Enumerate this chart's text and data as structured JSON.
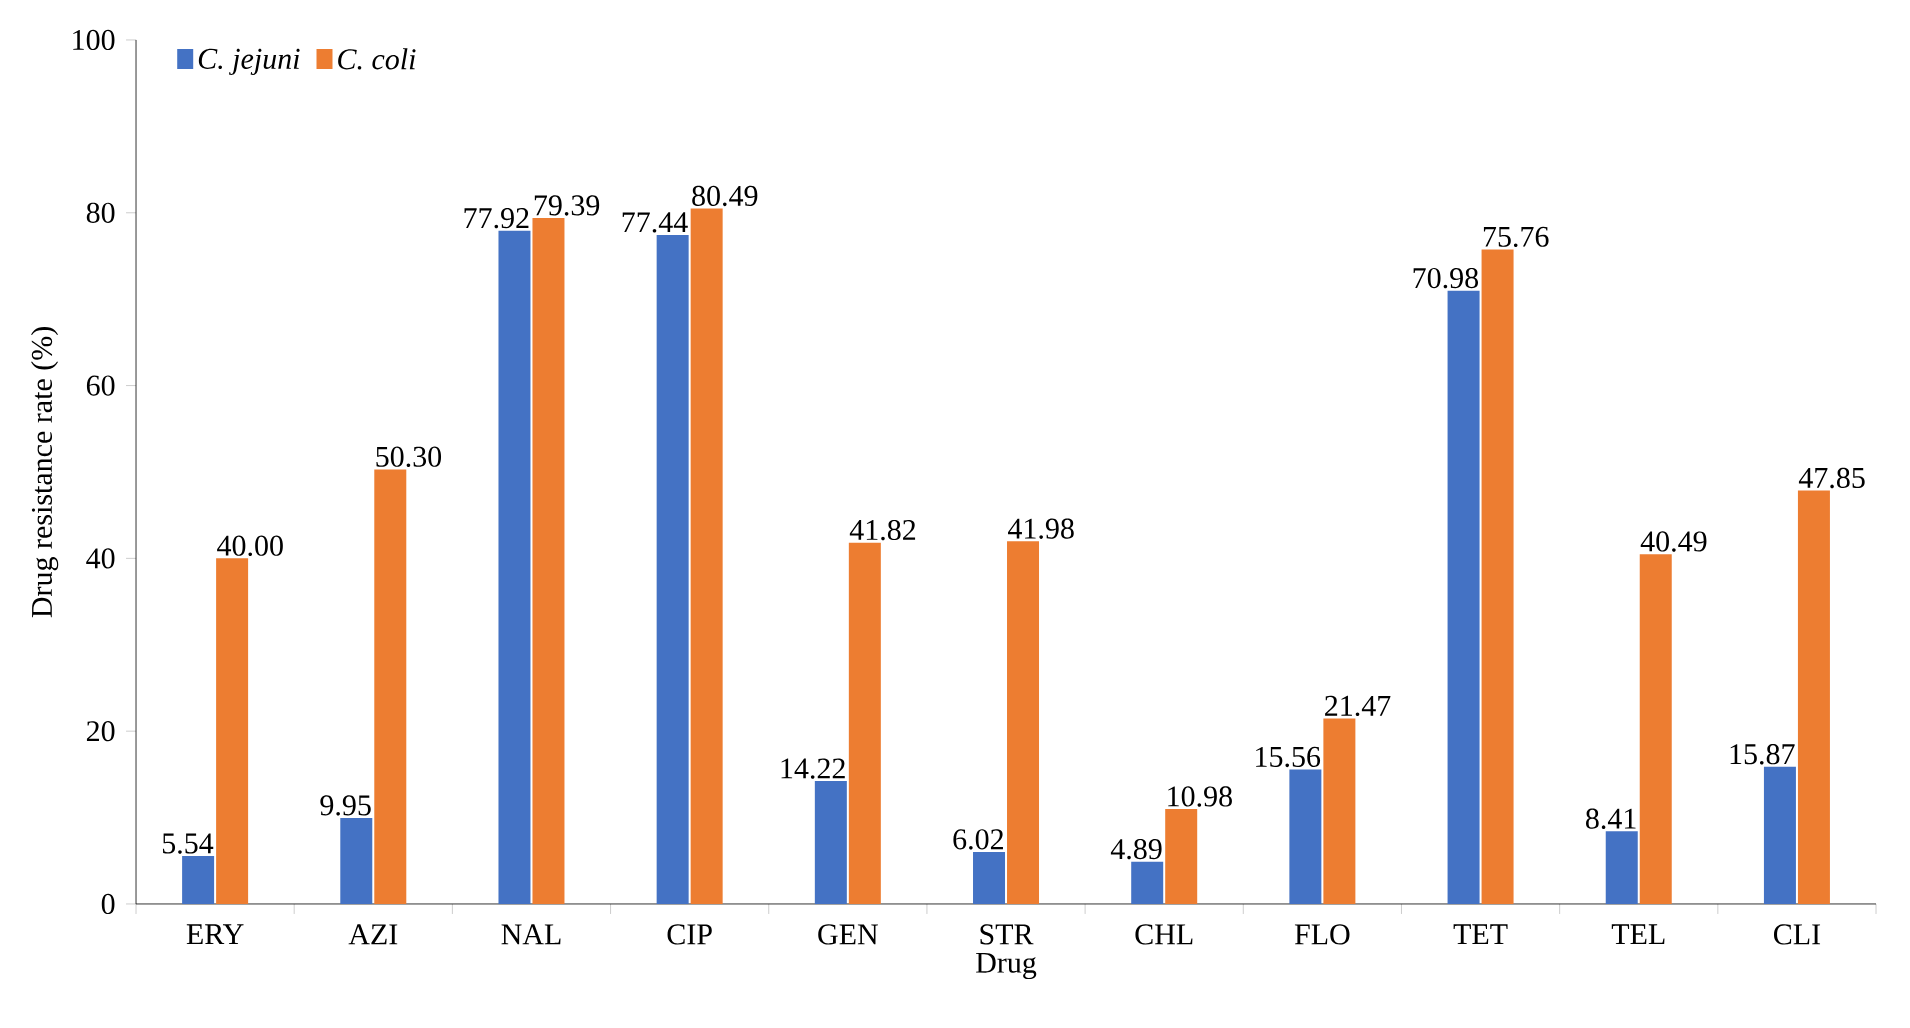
{
  "chart_data": {
    "type": "bar",
    "xlabel": "Drug",
    "ylabel": "Drug resistance rate (%)",
    "categories": [
      "ERY",
      "AZI",
      "NAL",
      "CIP",
      "GEN",
      "STR",
      "CHL",
      "FLO",
      "TET",
      "TEL",
      "CLI"
    ],
    "series": [
      {
        "name": "C. jejuni",
        "color": "#4472c4",
        "values": [
          5.54,
          9.95,
          77.92,
          77.44,
          14.22,
          6.02,
          4.89,
          15.56,
          70.98,
          8.41,
          15.87
        ],
        "value_labels": [
          "5.54",
          "9.95",
          "77.92",
          "77.44",
          "14.22",
          "6.02",
          "4.89",
          "15.56",
          "70.98",
          "8.41",
          "15.87"
        ]
      },
      {
        "name": "C. coli",
        "color": "#ed7d31",
        "values": [
          40.0,
          50.3,
          79.39,
          80.49,
          41.82,
          41.98,
          10.98,
          21.47,
          75.76,
          40.49,
          47.85
        ],
        "value_labels": [
          "40.00",
          "50.30",
          "79.39",
          "80.49",
          "41.82",
          "41.98",
          "10.98",
          "21.47",
          "75.76",
          "40.49",
          "47.85"
        ]
      }
    ],
    "ylim": [
      0,
      100
    ],
    "yticks": [
      0,
      20,
      40,
      60,
      80,
      100
    ],
    "legend": "top left",
    "grid": false
  }
}
